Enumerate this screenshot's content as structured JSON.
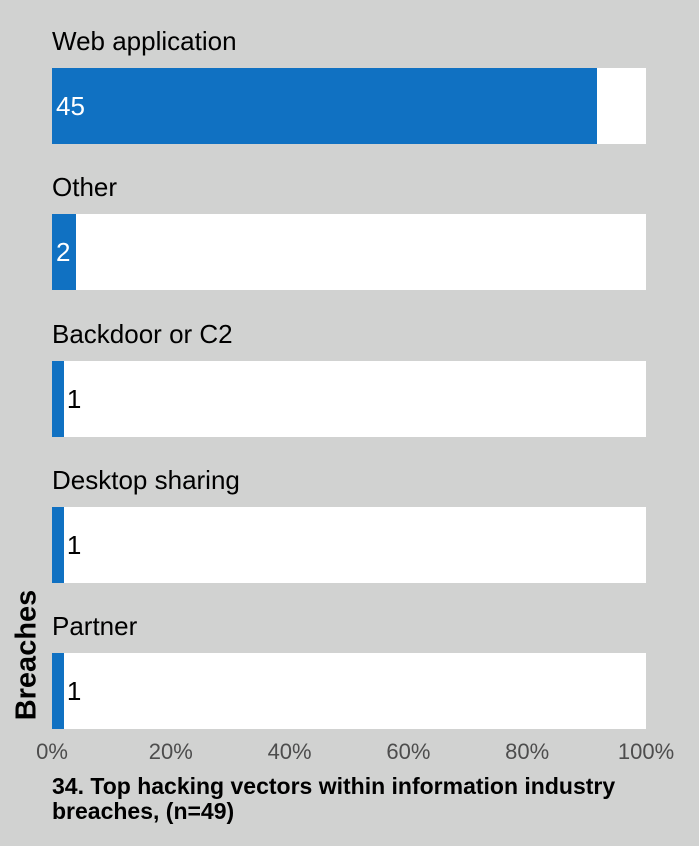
{
  "chart_data": {
    "type": "bar",
    "orientation": "horizontal",
    "title": "34.  Top hacking vectors within information industry breaches, (n=49)",
    "ylabel": "Breaches",
    "categories": [
      "Web application",
      "Other",
      "Backdoor or C2",
      "Desktop sharing",
      "Partner"
    ],
    "values": [
      45,
      2,
      1,
      1,
      1
    ],
    "percent_values": [
      91.8,
      4.1,
      2.0,
      2.0,
      2.0
    ],
    "xlim": [
      0,
      100
    ],
    "x_ticks": [
      "0%",
      "20%",
      "40%",
      "60%",
      "80%",
      "100%"
    ],
    "grid": false,
    "legend": "none",
    "colors": {
      "bar": "#1071c2",
      "track": "#ffffff",
      "background": "#d1d2d1",
      "label_on_bar": "#ffffff",
      "label_off_bar": "#000000",
      "tick": "#4d4d4d"
    }
  }
}
